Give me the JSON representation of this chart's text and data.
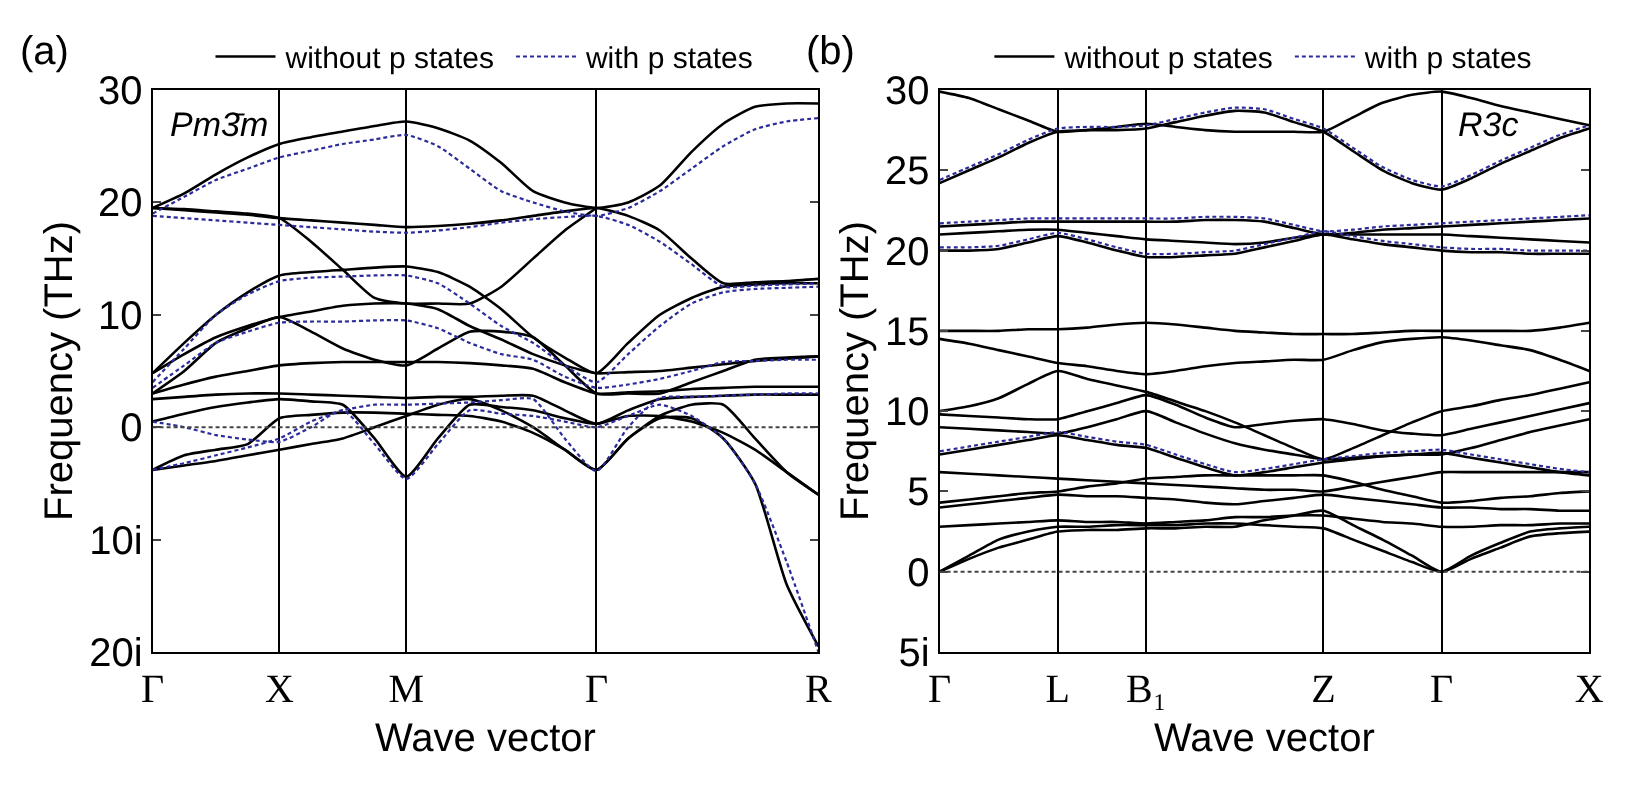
{
  "chart_data": [
    {
      "type": "line",
      "xlabel": "Wave vector",
      "ylabel": "Frequency (THz)",
      "annotations": [
        "(a)",
        "Pm3̄m"
      ],
      "categories": [
        "Γ",
        null,
        null,
        null,
        "X",
        null,
        null,
        null,
        "M",
        null,
        null,
        null,
        null,
        null,
        "Γ",
        null,
        null,
        null,
        null,
        null,
        null,
        "R"
      ],
      "ylim": [
        -20,
        30
      ],
      "yticks": [
        30,
        20,
        10,
        0,
        {
          "value": -10,
          "label": "10i"
        },
        {
          "value": -20,
          "label": "20i"
        }
      ],
      "grid": "x",
      "legend": "top",
      "marker": "none",
      "ref_lines": [
        {
          "axis": "y",
          "value": 0,
          "color": "#444444",
          "line_style": "dotted"
        }
      ],
      "series": [
        {
          "name": "without p states",
          "color": "#000000",
          "line_style": "solid",
          "values": [
            19.5,
            20.8,
            22.5,
            24,
            25.2,
            25.8,
            26.3,
            26.8,
            27.2,
            26.6,
            25.5,
            23.5,
            21,
            20,
            19.5,
            20,
            21.5,
            24.5,
            27,
            28.5,
            28.8,
            28.8
          ]
        },
        {
          "color": "#000000",
          "line_style": "solid",
          "values": [
            19.5,
            19.3,
            19.1,
            18.9,
            18.6,
            18.4,
            18.2,
            18,
            17.8,
            17.9,
            18.1,
            18.4,
            18.8,
            19.2,
            19.5,
            18.8,
            17.5,
            15,
            12.8,
            12.9,
            13,
            13.2
          ]
        },
        {
          "color": "#000000",
          "line_style": "solid",
          "values": [
            19.5,
            19.4,
            19.2,
            19,
            18.6,
            16.5,
            14,
            11.5,
            11,
            11,
            11,
            12.5,
            15,
            17.5,
            19.5,
            null,
            null,
            null,
            null,
            null,
            null,
            null
          ]
        },
        {
          "color": "#000000",
          "line_style": "solid",
          "values": [
            4.8,
            7.5,
            10,
            12,
            13.5,
            13.8,
            14,
            14.2,
            14.3,
            13.8,
            12.5,
            10.5,
            8,
            6.2,
            4.8,
            7.5,
            10,
            11.5,
            12.5,
            12.7,
            12.8,
            12.8
          ]
        },
        {
          "color": "#000000",
          "line_style": "solid",
          "values": [
            4.8,
            6.5,
            8,
            9,
            9.8,
            10.3,
            10.8,
            11,
            11,
            10.5,
            9,
            7.8,
            6.5,
            5.5,
            4.8,
            4.9,
            5,
            5.3,
            5.6,
            5.9,
            6.1,
            6.3
          ]
        },
        {
          "color": "#000000",
          "line_style": "solid",
          "values": [
            3,
            5,
            7.5,
            8.8,
            9.8,
            8.5,
            7,
            6,
            5.5,
            7,
            8.5,
            8.5,
            8,
            5.5,
            3,
            3,
            3,
            4,
            5,
            6,
            6.2,
            6.3
          ]
        },
        {
          "color": "#000000",
          "line_style": "solid",
          "values": [
            3,
            3.8,
            4.5,
            5,
            5.5,
            5.7,
            5.8,
            5.8,
            5.8,
            5.8,
            5.7,
            5.5,
            5.2,
            4,
            3,
            3.1,
            3.2,
            3.4,
            3.5,
            3.6,
            3.6,
            3.6
          ]
        },
        {
          "color": "#000000",
          "line_style": "solid",
          "values": [
            2.5,
            2.7,
            2.9,
            3,
            3,
            2.9,
            2.8,
            2.7,
            2.6,
            2.7,
            2.7,
            2.8,
            2.8,
            1.5,
            0.3,
            1.5,
            2.5,
            2.7,
            2.8,
            2.9,
            2.9,
            2.9
          ]
        },
        {
          "color": "#000000",
          "line_style": "solid",
          "values": [
            0.5,
            1.2,
            1.8,
            2.2,
            2.5,
            2.3,
            2,
            -1,
            -4.4,
            -1,
            2,
            1.8,
            1.5,
            0.8,
            0.3,
            1,
            1,
            0.5,
            -0.5,
            -2,
            -4,
            -6
          ]
        },
        {
          "color": "#000000",
          "line_style": "solid",
          "values": [
            -3.8,
            -2.5,
            -2,
            -1.5,
            0.8,
            1.1,
            1.3,
            1.3,
            1.2,
            1.1,
            1,
            0.5,
            -0.5,
            -2,
            -3.8,
            -1,
            0.8,
            0.8,
            -1,
            -5,
            -14,
            -19.5
          ]
        },
        {
          "color": "#000000",
          "line_style": "solid",
          "values": [
            -3.8,
            -3.4,
            -3,
            -2.5,
            -2,
            -1.5,
            -1,
            0,
            1,
            2,
            2.5,
            1.5,
            0,
            -2,
            -3.8,
            -1,
            1,
            2,
            2,
            -1,
            -4,
            -6
          ]
        },
        {
          "name": "with p states",
          "color": "#2b2b9a",
          "line_style": "dotted",
          "values": [
            19,
            20.5,
            22,
            23,
            24,
            24.6,
            25.2,
            25.6,
            26,
            25,
            23,
            21,
            20,
            19.2,
            18.8,
            19.5,
            21,
            23,
            25,
            26.5,
            27.2,
            27.5
          ]
        },
        {
          "color": "#2b2b9a",
          "line_style": "dotted",
          "values": [
            18.8,
            18.6,
            18.4,
            18.2,
            18,
            17.8,
            17.6,
            17.4,
            17.3,
            17.5,
            17.8,
            18.2,
            18.5,
            18.7,
            18.8,
            18,
            16.5,
            14.5,
            12.5,
            12.6,
            12.7,
            12.8
          ]
        },
        {
          "color": "#2b2b9a",
          "line_style": "dotted",
          "values": [
            4,
            7,
            10,
            11.8,
            13,
            13.3,
            13.4,
            13.5,
            13.5,
            12.8,
            11,
            9,
            7.5,
            5.5,
            4,
            6.5,
            9,
            11,
            12,
            12.3,
            12.4,
            12.5
          ]
        },
        {
          "color": "#2b2b9a",
          "line_style": "dotted",
          "values": [
            3.5,
            5.5,
            7.5,
            8.5,
            9.3,
            9.4,
            9.4,
            9.5,
            9.5,
            8.8,
            7.5,
            6.5,
            6,
            4.5,
            3.5,
            3.8,
            4.3,
            5,
            5.8,
            5.9,
            6,
            6
          ]
        },
        {
          "color": "#2b2b9a",
          "line_style": "dotted",
          "values": [
            0.5,
            0,
            -0.7,
            -1.1,
            -1.3,
            0,
            1.5,
            -1.5,
            -4.6,
            -1.5,
            1.5,
            1.2,
            1,
            0.5,
            0,
            1,
            2,
            1,
            -1,
            -5,
            -12,
            -20
          ]
        },
        {
          "color": "#2b2b9a",
          "line_style": "dotted",
          "values": [
            -3.8,
            -3.2,
            -2.5,
            -1.8,
            -1,
            0.5,
            1.5,
            2,
            2,
            2.1,
            2.2,
            2.4,
            2.5,
            -1,
            -3.9,
            0,
            2.6,
            2.7,
            2.8,
            2.9,
            3,
            3
          ]
        }
      ]
    },
    {
      "type": "line",
      "xlabel": "Wave vector",
      "ylabel": "Frequency (THz)",
      "annotations": [
        "(b)",
        "R3c"
      ],
      "categories": [
        "Γ",
        null,
        null,
        null,
        "L",
        null,
        null,
        "B₁",
        null,
        null,
        null,
        null,
        null,
        "Z",
        null,
        null,
        null,
        "Γ",
        null,
        null,
        null,
        null,
        "X"
      ],
      "ylim": [
        -5,
        30
      ],
      "yticks": [
        30,
        25,
        20,
        15,
        10,
        5,
        0,
        {
          "value": -5,
          "label": "5i"
        }
      ],
      "grid": "x",
      "legend": "top",
      "marker": "none",
      "ref_lines": [
        {
          "axis": "y",
          "value": 0,
          "color": "#444444",
          "line_style": "dotted"
        }
      ],
      "series": [
        {
          "name": "without p states",
          "color": "#000000",
          "line_style": "solid",
          "values": [
            29.9,
            29.5,
            28.8,
            28.1,
            27.4,
            27.5,
            27.7,
            27.9,
            27.7,
            27.5,
            27.4,
            27.4,
            27.4,
            27.4,
            28.3,
            29.2,
            29.7,
            29.9,
            29.5,
            29,
            28.6,
            28.2,
            27.8
          ]
        },
        {
          "color": "#000000",
          "line_style": "solid",
          "values": [
            24.2,
            25,
            25.8,
            26.7,
            27.4,
            27.5,
            27.5,
            27.6,
            28,
            28.4,
            28.7,
            28.6,
            28,
            27.4,
            26.2,
            25,
            24.2,
            23.8,
            24.5,
            25.4,
            26.2,
            27,
            27.6
          ]
        },
        {
          "color": "#000000",
          "line_style": "solid",
          "values": [
            21.5,
            21.6,
            21.7,
            21.8,
            21.8,
            21.8,
            21.8,
            21.8,
            21.8,
            21.9,
            21.9,
            21.8,
            21.4,
            21,
            21.1,
            21.3,
            21.4,
            21.5,
            21.6,
            21.7,
            21.8,
            21.9,
            22
          ]
        },
        {
          "color": "#000000",
          "line_style": "solid",
          "values": [
            21,
            21.1,
            21.2,
            21.3,
            21.3,
            21.1,
            20.9,
            20.7,
            20.6,
            20.5,
            20.4,
            20.5,
            20.8,
            21,
            21,
            21,
            21,
            21,
            20.9,
            20.8,
            20.7,
            20.6,
            20.5
          ]
        },
        {
          "color": "#000000",
          "line_style": "solid",
          "values": [
            20,
            20,
            20.1,
            20.5,
            20.9,
            20.5,
            20,
            19.6,
            19.6,
            19.7,
            19.8,
            20.2,
            20.6,
            21,
            20.7,
            20.4,
            20.2,
            20,
            19.9,
            19.9,
            19.8,
            19.8,
            19.8
          ]
        },
        {
          "color": "#000000",
          "line_style": "solid",
          "values": [
            15,
            15,
            15,
            15.1,
            15.1,
            15.2,
            15.4,
            15.5,
            15.4,
            15.2,
            15,
            14.9,
            14.8,
            14.8,
            14.8,
            14.9,
            15,
            15,
            15,
            15,
            15,
            15.2,
            15.5
          ]
        },
        {
          "color": "#000000",
          "line_style": "solid",
          "values": [
            14.5,
            14.2,
            13.8,
            13.4,
            13,
            12.8,
            12.5,
            12.3,
            12.5,
            12.8,
            13,
            13.1,
            13.2,
            13.2,
            13.8,
            14.3,
            14.5,
            14.6,
            14.4,
            14.1,
            13.8,
            13.2,
            12.5
          ]
        },
        {
          "color": "#000000",
          "line_style": "solid",
          "values": [
            10,
            10.3,
            10.8,
            11.7,
            12.5,
            12,
            11.6,
            11.2,
            10.6,
            10,
            9.3,
            8.5,
            7.7,
            7,
            7.7,
            8.5,
            9.3,
            10,
            10.3,
            10.7,
            11,
            11.4,
            11.8
          ]
        },
        {
          "color": "#000000",
          "line_style": "solid",
          "values": [
            9.8,
            9.7,
            9.6,
            9.5,
            9.5,
            10,
            10.5,
            11,
            10.4,
            9.6,
            9,
            9.2,
            9.4,
            9.5,
            9.2,
            8.8,
            8.6,
            8.5,
            8.9,
            9.3,
            9.7,
            10.1,
            10.5
          ]
        },
        {
          "color": "#000000",
          "line_style": "solid",
          "values": [
            9,
            8.9,
            8.8,
            8.7,
            8.6,
            9,
            9.5,
            10,
            9.3,
            8.6,
            8,
            7.6,
            7.3,
            7,
            7.1,
            7.2,
            7.3,
            7.3,
            7.7,
            8.2,
            8.7,
            9.1,
            9.5
          ]
        },
        {
          "color": "#000000",
          "line_style": "solid",
          "values": [
            7.3,
            7.6,
            7.9,
            8.2,
            8.5,
            8.2,
            7.9,
            7.7,
            7.1,
            6.5,
            6,
            6.2,
            6.5,
            6.8,
            7,
            7.2,
            7.3,
            7.4,
            7.1,
            6.8,
            6.5,
            6.2,
            6
          ]
        },
        {
          "color": "#000000",
          "line_style": "solid",
          "values": [
            6.2,
            6.1,
            6,
            5.9,
            5.8,
            5.7,
            5.6,
            5.5,
            5.4,
            5.3,
            5.2,
            5.1,
            5.1,
            5,
            5.3,
            5.6,
            5.9,
            6.2,
            6.2,
            6.2,
            6.2,
            6.2,
            6.2
          ]
        },
        {
          "color": "#000000",
          "line_style": "solid",
          "values": [
            4.3,
            4.5,
            4.7,
            4.9,
            5,
            5.3,
            5.5,
            5.8,
            5.9,
            6,
            6,
            6,
            6,
            6,
            5.6,
            5.1,
            4.7,
            4.3,
            4.4,
            4.6,
            4.7,
            4.9,
            5
          ]
        },
        {
          "color": "#000000",
          "line_style": "solid",
          "values": [
            4,
            4.2,
            4.4,
            4.6,
            4.8,
            4.7,
            4.7,
            4.6,
            4.5,
            4.3,
            4.2,
            4.4,
            4.6,
            4.8,
            4.6,
            4.4,
            4.2,
            4,
            4,
            3.9,
            3.9,
            3.8,
            3.8
          ]
        },
        {
          "color": "#000000",
          "line_style": "solid",
          "values": [
            2.8,
            2.9,
            3,
            3.1,
            3.2,
            3.1,
            3.1,
            3,
            3.1,
            3.2,
            3.4,
            3.4,
            3.5,
            3.5,
            3.3,
            3.1,
            3,
            2.8,
            2.8,
            2.9,
            2.9,
            3,
            3
          ]
        },
        {
          "color": "#000000",
          "line_style": "solid",
          "values": [
            0,
            1,
            2,
            2.5,
            2.8,
            2.8,
            2.9,
            2.9,
            2.9,
            3,
            3,
            2.9,
            2.8,
            2.7,
            2,
            1.3,
            0.6,
            0,
            1,
            1.8,
            2.5,
            2.7,
            2.8
          ]
        },
        {
          "color": "#000000",
          "line_style": "solid",
          "values": [
            0,
            0.8,
            1.5,
            2,
            2.5,
            2.6,
            2.6,
            2.7,
            2.7,
            2.8,
            2.8,
            3.2,
            3.5,
            3.8,
            2.9,
            2,
            1,
            0,
            0.8,
            1.5,
            2.2,
            2.4,
            2.5
          ]
        },
        {
          "name": "with p states",
          "color": "#2b2b9a",
          "line_style": "dotted",
          "values": [
            24.4,
            25.2,
            26,
            26.9,
            27.6,
            27.7,
            27.7,
            27.8,
            28.2,
            28.6,
            28.9,
            28.8,
            28.2,
            27.6,
            26.4,
            25.2,
            24.4,
            24,
            24.7,
            25.6,
            26.4,
            27.2,
            27.8
          ]
        },
        {
          "color": "#2b2b9a",
          "line_style": "dotted",
          "values": [
            21.7,
            21.8,
            21.9,
            22,
            22,
            22,
            22,
            22,
            22,
            22.1,
            22.1,
            22,
            21.6,
            21.2,
            21.3,
            21.5,
            21.6,
            21.7,
            21.8,
            21.9,
            22,
            22.1,
            22.2
          ]
        },
        {
          "color": "#2b2b9a",
          "line_style": "dotted",
          "values": [
            20.2,
            20.2,
            20.3,
            20.7,
            21.1,
            20.7,
            20.2,
            19.8,
            19.8,
            19.9,
            20,
            20.4,
            20.8,
            21.2,
            20.9,
            20.6,
            20.4,
            20.2,
            20.1,
            20.1,
            20,
            20,
            20
          ]
        },
        {
          "color": "#2b2b9a",
          "line_style": "dotted",
          "values": [
            7.5,
            7.8,
            8.1,
            8.4,
            8.7,
            8.4,
            8.1,
            7.9,
            7.3,
            6.7,
            6.2,
            6.4,
            6.7,
            7,
            7.2,
            7.4,
            7.5,
            7.6,
            7.3,
            7,
            6.7,
            6.4,
            6.2
          ]
        }
      ]
    }
  ]
}
